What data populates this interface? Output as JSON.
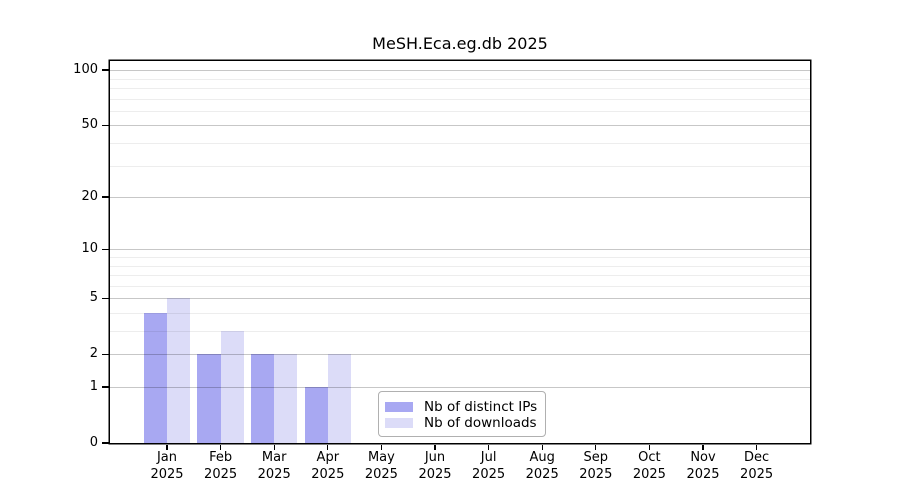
{
  "title": "MeSH.Eca.eg.db 2025",
  "legend": {
    "items": [
      {
        "label": "Nb of distinct IPs",
        "color": "#a8a8f2"
      },
      {
        "label": "Nb of downloads",
        "color": "#dcdcf8"
      }
    ]
  },
  "colors": {
    "distinct_ips_bar": "#a8a8f2",
    "downloads_bar": "#dcdcf8",
    "axis": "#000000",
    "major_grid": "#c7c7c7",
    "minor_grid": "#ededed"
  },
  "chart_data": {
    "type": "bar",
    "title": "MeSH.Eca.eg.db 2025",
    "categories": [
      "Jan",
      "Feb",
      "Mar",
      "Apr",
      "May",
      "Jun",
      "Jul",
      "Aug",
      "Sep",
      "Oct",
      "Nov",
      "Dec"
    ],
    "x_year": "2025",
    "series": [
      {
        "name": "Nb of distinct IPs",
        "color": "#a8a8f2",
        "values": [
          4,
          2,
          2,
          1,
          0,
          0,
          0,
          0,
          0,
          0,
          0,
          0
        ]
      },
      {
        "name": "Nb of downloads",
        "color": "#dcdcf8",
        "values": [
          5,
          3,
          2,
          2,
          0,
          0,
          0,
          0,
          0,
          0,
          0,
          0
        ]
      }
    ],
    "xlabel": "",
    "ylabel": "",
    "yscale": "log10(value+1)",
    "y_major_ticks": [
      0,
      1,
      2,
      5,
      10,
      20,
      50,
      100
    ],
    "y_minor_ticks": [
      3,
      4,
      6,
      7,
      8,
      9,
      30,
      40,
      60,
      70,
      80,
      90
    ],
    "ylim": [
      0,
      112
    ],
    "grid": true,
    "legend_position": "lower center"
  }
}
